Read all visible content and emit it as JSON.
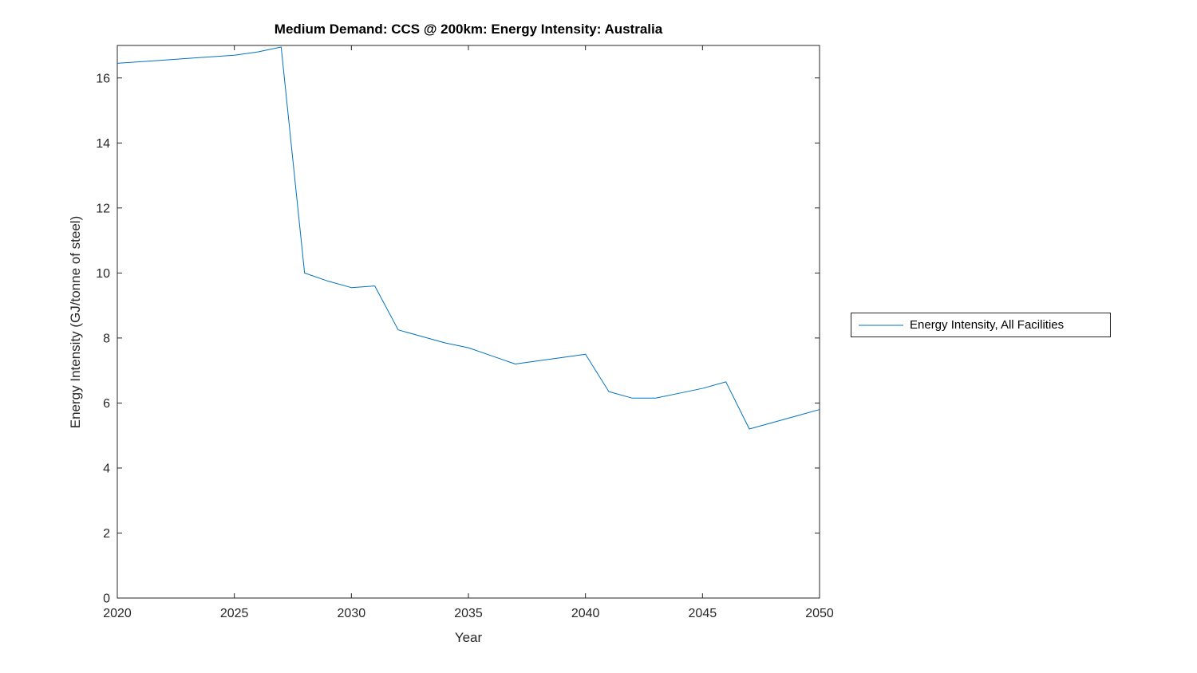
{
  "colors": {
    "axis": "#262626",
    "tick_text": "#262626",
    "title_text": "#000000",
    "background": "#ffffff"
  },
  "chart_data": {
    "type": "line",
    "title": "Medium Demand: CCS @ 200km: Energy Intensity: Australia",
    "xlabel": "Year",
    "ylabel": "Energy Intensity (GJ/tonne of steel)",
    "xlim": [
      2020,
      2050
    ],
    "ylim": [
      0,
      17
    ],
    "xticks": [
      2020,
      2025,
      2030,
      2035,
      2040,
      2045,
      2050
    ],
    "yticks": [
      0,
      2,
      4,
      6,
      8,
      10,
      12,
      14,
      16
    ],
    "grid": false,
    "box": true,
    "legend": {
      "position": "right-outside",
      "entries": [
        {
          "label": "Energy Intensity, All Facilities",
          "color": "#0072BD"
        }
      ]
    },
    "series": [
      {
        "name": "Energy Intensity, All Facilities",
        "color": "#0072BD",
        "x": [
          2020,
          2021,
          2022,
          2023,
          2024,
          2025,
          2026,
          2027,
          2028,
          2029,
          2030,
          2031,
          2032,
          2033,
          2034,
          2035,
          2036,
          2037,
          2038,
          2039,
          2040,
          2041,
          2042,
          2043,
          2044,
          2045,
          2046,
          2047,
          2048,
          2049,
          2050
        ],
        "y": [
          16.45,
          16.5,
          16.55,
          16.6,
          16.65,
          16.7,
          16.8,
          16.95,
          10.0,
          9.75,
          9.55,
          9.6,
          8.25,
          8.05,
          7.85,
          7.7,
          7.45,
          7.2,
          7.3,
          7.4,
          7.5,
          6.35,
          6.15,
          6.15,
          6.3,
          6.45,
          6.65,
          5.2,
          5.4,
          5.6,
          5.8
        ]
      }
    ]
  }
}
